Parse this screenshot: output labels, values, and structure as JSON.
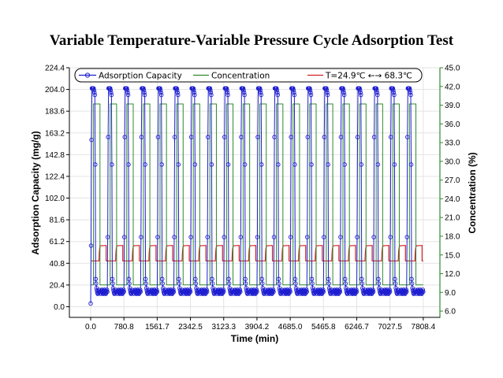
{
  "chart_data": {
    "type": "line",
    "title": "Variable Temperature-Variable Pressure Cycle Adsorption Test",
    "xlabel": "Time (min)",
    "ylabel": "Adsorption Capacity (mg/g)",
    "y2label": "Concentration (%)",
    "xlim": [
      -500,
      8200
    ],
    "ylim": [
      -10,
      224.4
    ],
    "y2lim": [
      5.0,
      45.0
    ],
    "x_ticks": [
      "0.0",
      "780.8",
      "1561.7",
      "2342.5",
      "3123.3",
      "3904.2",
      "4685.0",
      "5465.8",
      "6246.7",
      "7027.5",
      "7808.4"
    ],
    "y_ticks": [
      "0.0",
      "20.4",
      "40.8",
      "61.2",
      "81.6",
      "102.0",
      "122.4",
      "142.8",
      "163.2",
      "183.6",
      "204.0",
      "224.4"
    ],
    "y2_ticks": [
      "6.0",
      "9.0",
      "12.0",
      "15.0",
      "18.0",
      "21.0",
      "24.0",
      "27.0",
      "30.0",
      "33.0",
      "36.0",
      "39.0",
      "42.0",
      "45.0"
    ],
    "legend_position": "top",
    "cycles": 20,
    "cycle_start_min": 0,
    "cycle_period_min": 390.4,
    "series": [
      {
        "name": "Adsorption Capacity",
        "axis": "left",
        "color": "#1f1fd0",
        "marker": "circle",
        "peak_value": 205,
        "trough_value": 14,
        "cycle_start_value": 3
      },
      {
        "name": "Concentration",
        "axis": "right",
        "color": "#2e8b2e",
        "high_value": 39.2,
        "low_value": 10.2
      },
      {
        "name": "T=24.9℃ ←→ 68.3℃",
        "axis": "left",
        "color": "#d42020",
        "low_label": "24.9℃",
        "high_label": "68.3℃",
        "low_value": 43.0,
        "high_value": 57.5
      }
    ]
  },
  "legend": {
    "adsorption": "Adsorption Capacity",
    "concentration": "Concentration",
    "temperature": "T=24.9℃ ←→ 68.3℃"
  },
  "colors": {
    "adsorption": "#1f1fd0",
    "concentration": "#2e8b2e",
    "temperature": "#d42020",
    "right_axis": "#2e8b2e"
  }
}
